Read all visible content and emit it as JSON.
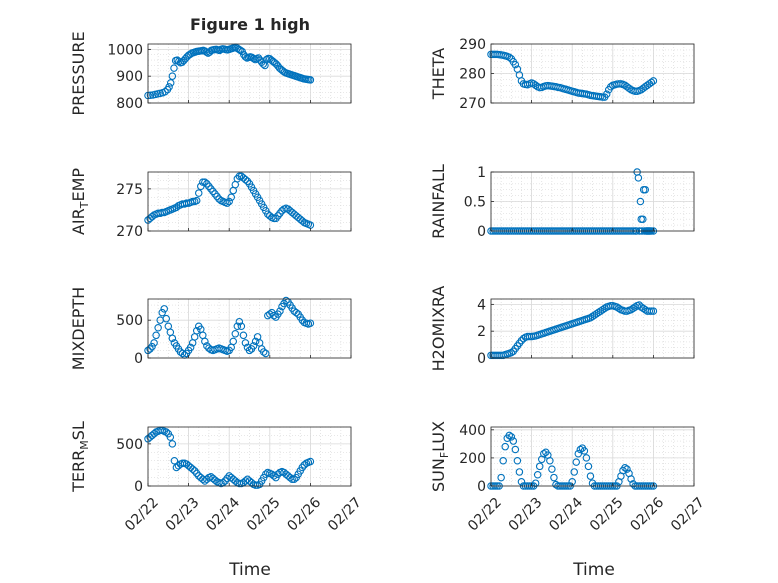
{
  "figure": {
    "title": "Figure 1 high",
    "xlabel": "Time",
    "x_ticks": [
      "02/22",
      "02/23",
      "02/24",
      "02/25",
      "02/26",
      "02/27"
    ],
    "marker_color": "#0072BD",
    "grid_color": "#d9d9d9",
    "axis_color": "#262626"
  },
  "chart_data": [
    {
      "type": "scatter",
      "ylabel": "PRESSURE",
      "ylim": [
        800,
        1020
      ],
      "yticks": [
        "800",
        "900",
        "1000"
      ],
      "x": [
        0.0,
        0.06,
        0.12,
        0.18,
        0.24,
        0.3,
        0.36,
        0.42,
        0.48,
        0.52,
        0.56,
        0.6,
        0.64,
        0.68,
        0.72,
        0.76,
        0.8,
        0.84,
        0.88,
        0.92,
        0.96,
        1.0,
        1.04,
        1.08,
        1.12,
        1.16,
        1.2,
        1.24,
        1.28,
        1.32,
        1.36,
        1.4,
        1.44,
        1.48,
        1.52,
        1.56,
        1.6,
        1.64,
        1.68,
        1.72,
        1.76,
        1.8,
        1.84,
        1.88,
        1.92,
        1.96,
        2.0,
        2.04,
        2.08,
        2.12,
        2.16,
        2.2,
        2.24,
        2.28,
        2.32,
        2.36,
        2.4,
        2.44,
        2.48,
        2.52,
        2.56,
        2.6,
        2.64,
        2.68,
        2.72,
        2.76,
        2.8,
        2.84,
        2.88,
        2.92,
        2.96,
        3.0,
        3.04,
        3.08,
        3.12,
        3.16,
        3.2,
        3.24,
        3.28,
        3.32,
        3.36,
        3.4,
        3.44,
        3.48,
        3.52,
        3.56,
        3.6,
        3.64,
        3.68,
        3.72,
        3.76,
        3.8,
        3.84,
        3.88,
        3.92,
        3.96,
        4.0
      ],
      "y": [
        828,
        829,
        830,
        832,
        834,
        836,
        838,
        842,
        850,
        860,
        875,
        900,
        930,
        958,
        960,
        955,
        950,
        952,
        958,
        965,
        972,
        978,
        982,
        986,
        988,
        990,
        992,
        993,
        994,
        995,
        996,
        994,
        990,
        986,
        990,
        996,
        998,
        999,
        1000,
        998,
        996,
        1000,
        1002,
        1001,
        999,
        998,
        1000,
        1002,
        1004,
        1006,
        1008,
        1004,
        1000,
        996,
        992,
        980,
        972,
        968,
        970,
        972,
        970,
        966,
        962,
        965,
        968,
        960,
        952,
        945,
        940,
        962,
        966,
        965,
        960,
        955,
        950,
        945,
        938,
        930,
        925,
        920,
        915,
        912,
        910,
        908,
        906,
        904,
        902,
        900,
        898,
        896,
        894,
        892,
        890,
        889,
        888,
        887,
        886
      ]
    },
    {
      "type": "scatter",
      "ylabel": "THETA",
      "ylim": [
        270,
        290
      ],
      "yticks": [
        "270",
        "280",
        "290"
      ],
      "x": [
        0.0,
        0.05,
        0.1,
        0.15,
        0.2,
        0.25,
        0.3,
        0.35,
        0.4,
        0.45,
        0.5,
        0.55,
        0.6,
        0.65,
        0.7,
        0.75,
        0.8,
        0.85,
        0.9,
        0.95,
        1.0,
        1.05,
        1.1,
        1.15,
        1.2,
        1.25,
        1.3,
        1.35,
        1.4,
        1.45,
        1.5,
        1.55,
        1.6,
        1.65,
        1.7,
        1.75,
        1.8,
        1.85,
        1.9,
        1.95,
        2.0,
        2.05,
        2.1,
        2.15,
        2.2,
        2.25,
        2.3,
        2.35,
        2.4,
        2.45,
        2.5,
        2.55,
        2.6,
        2.65,
        2.7,
        2.75,
        2.8,
        2.85,
        2.9,
        2.95,
        3.0,
        3.05,
        3.1,
        3.15,
        3.2,
        3.25,
        3.3,
        3.35,
        3.4,
        3.45,
        3.5,
        3.55,
        3.6,
        3.65,
        3.7,
        3.75,
        3.8,
        3.85,
        3.9,
        3.95,
        4.0
      ],
      "y": [
        286.5,
        286.5,
        286.5,
        286.5,
        286.4,
        286.3,
        286.2,
        286,
        285.8,
        285.5,
        285,
        284,
        283,
        281.5,
        279.5,
        277.5,
        276.5,
        276.3,
        276.2,
        276.5,
        276.8,
        276.5,
        276,
        275.5,
        275.2,
        275.3,
        275.6,
        275.8,
        275.9,
        275.8,
        275.7,
        275.6,
        275.5,
        275.3,
        275.2,
        275,
        274.8,
        274.6,
        274.4,
        274.2,
        274,
        273.8,
        273.6,
        273.4,
        273.3,
        273.2,
        273.1,
        273,
        272.8,
        272.6,
        272.5,
        272.4,
        272.3,
        272.2,
        272.1,
        272,
        272,
        273,
        274.5,
        275.5,
        276,
        276.2,
        276.4,
        276.5,
        276.5,
        276.3,
        276,
        275.5,
        275,
        274.5,
        274.2,
        274,
        274,
        274.2,
        274.5,
        275,
        275.5,
        276,
        276.5,
        277,
        277.5
      ]
    },
    {
      "type": "scatter",
      "ylabel": "AIR_TEMP",
      "ylim": [
        270,
        277
      ],
      "yticks": [
        "270",
        "275"
      ],
      "x": [
        0.0,
        0.05,
        0.1,
        0.15,
        0.2,
        0.25,
        0.3,
        0.35,
        0.4,
        0.45,
        0.5,
        0.55,
        0.6,
        0.65,
        0.7,
        0.75,
        0.8,
        0.85,
        0.9,
        0.95,
        1.0,
        1.05,
        1.1,
        1.15,
        1.2,
        1.25,
        1.3,
        1.35,
        1.4,
        1.45,
        1.5,
        1.55,
        1.6,
        1.65,
        1.7,
        1.75,
        1.8,
        1.85,
        1.9,
        1.95,
        2.0,
        2.05,
        2.1,
        2.15,
        2.2,
        2.25,
        2.3,
        2.35,
        2.4,
        2.45,
        2.5,
        2.55,
        2.6,
        2.65,
        2.7,
        2.75,
        2.8,
        2.85,
        2.9,
        2.95,
        3.0,
        3.05,
        3.1,
        3.15,
        3.2,
        3.25,
        3.3,
        3.35,
        3.4,
        3.45,
        3.5,
        3.55,
        3.6,
        3.65,
        3.7,
        3.75,
        3.8,
        3.85,
        3.9,
        3.95,
        4.0
      ],
      "y": [
        271.3,
        271.5,
        271.7,
        271.9,
        272,
        272.1,
        272.1,
        272.2,
        272.2,
        272.3,
        272.4,
        272.5,
        272.6,
        272.7,
        272.8,
        273,
        273.1,
        273.2,
        273.2,
        273.3,
        273.3,
        273.4,
        273.5,
        273.5,
        273.6,
        274.5,
        275.3,
        275.8,
        275.8,
        275.6,
        275.3,
        275,
        274.7,
        274.4,
        274.1,
        273.8,
        273.6,
        273.5,
        273.4,
        273.3,
        273.5,
        274,
        274.8,
        275.5,
        276.2,
        276.5,
        276.5,
        276.3,
        276.1,
        275.9,
        275.6,
        275.2,
        274.8,
        274.4,
        274,
        273.6,
        273.2,
        272.8,
        272.4,
        272,
        271.8,
        271.6,
        271.5,
        271.5,
        271.8,
        272.1,
        272.4,
        272.6,
        272.7,
        272.6,
        272.4,
        272.2,
        272,
        271.8,
        271.6,
        271.4,
        271.2,
        271,
        270.9,
        270.8,
        270.7
      ]
    },
    {
      "type": "scatter",
      "ylabel": "RAINFALL",
      "ylim": [
        0,
        1
      ],
      "yticks": [
        "0",
        "0.5",
        "1"
      ],
      "x": [
        0.0,
        0.05,
        0.1,
        0.15,
        0.2,
        0.25,
        0.3,
        0.35,
        0.4,
        0.45,
        0.5,
        0.55,
        0.6,
        0.65,
        0.7,
        0.75,
        0.8,
        0.85,
        0.9,
        0.95,
        1.0,
        1.05,
        1.1,
        1.15,
        1.2,
        1.25,
        1.3,
        1.35,
        1.4,
        1.45,
        1.5,
        1.55,
        1.6,
        1.65,
        1.7,
        1.75,
        1.8,
        1.85,
        1.9,
        1.95,
        2.0,
        2.05,
        2.1,
        2.15,
        2.2,
        2.25,
        2.3,
        2.35,
        2.4,
        2.45,
        2.5,
        2.55,
        2.6,
        2.65,
        2.7,
        2.75,
        2.8,
        2.85,
        2.9,
        2.95,
        3.0,
        3.05,
        3.1,
        3.15,
        3.2,
        3.25,
        3.3,
        3.35,
        3.4,
        3.45,
        3.5,
        3.55,
        3.58,
        3.6,
        3.63,
        3.66,
        3.68,
        3.7,
        3.72,
        3.74,
        3.76,
        3.78,
        3.8,
        3.82,
        3.84,
        3.86,
        3.88,
        3.9,
        3.92,
        3.95,
        4.0
      ],
      "y": [
        0,
        0,
        0,
        0,
        0,
        0,
        0,
        0,
        0,
        0,
        0,
        0,
        0,
        0,
        0,
        0,
        0,
        0,
        0,
        0,
        0,
        0,
        0,
        0,
        0,
        0,
        0,
        0,
        0,
        0,
        0,
        0,
        0,
        0,
        0,
        0,
        0,
        0,
        0,
        0,
        0,
        0,
        0,
        0,
        0,
        0,
        0,
        0,
        0,
        0,
        0,
        0,
        0,
        0,
        0,
        0,
        0,
        0,
        0,
        0,
        0,
        0,
        0,
        0,
        0,
        0,
        0,
        0,
        0,
        0,
        0,
        0,
        0,
        1.0,
        0.9,
        0,
        0.5,
        0.2,
        0,
        0.2,
        0.7,
        0,
        0.7,
        0,
        0,
        0,
        0,
        0,
        0,
        0,
        0
      ]
    },
    {
      "type": "scatter",
      "ylabel": "MIXDEPTH",
      "ylim": [
        0,
        780
      ],
      "yticks": [
        "0",
        "500"
      ],
      "x": [
        0.0,
        0.05,
        0.1,
        0.15,
        0.2,
        0.25,
        0.3,
        0.35,
        0.4,
        0.45,
        0.5,
        0.55,
        0.6,
        0.65,
        0.7,
        0.75,
        0.8,
        0.85,
        0.9,
        0.95,
        1.0,
        1.05,
        1.1,
        1.15,
        1.2,
        1.25,
        1.3,
        1.35,
        1.4,
        1.45,
        1.5,
        1.55,
        1.6,
        1.65,
        1.7,
        1.75,
        1.8,
        1.85,
        1.9,
        1.95,
        2.0,
        2.05,
        2.1,
        2.15,
        2.2,
        2.25,
        2.3,
        2.35,
        2.4,
        2.45,
        2.5,
        2.55,
        2.6,
        2.65,
        2.7,
        2.75,
        2.8,
        2.85,
        2.9,
        2.95,
        3.0,
        3.05,
        3.1,
        3.15,
        3.2,
        3.25,
        3.3,
        3.35,
        3.4,
        3.45,
        3.5,
        3.55,
        3.6,
        3.65,
        3.7,
        3.75,
        3.8,
        3.85,
        3.9,
        3.95,
        4.0
      ],
      "y": [
        100,
        120,
        150,
        200,
        300,
        400,
        500,
        600,
        650,
        520,
        420,
        340,
        260,
        200,
        160,
        120,
        80,
        60,
        40,
        60,
        100,
        140,
        200,
        280,
        360,
        420,
        380,
        300,
        220,
        160,
        130,
        110,
        100,
        110,
        120,
        130,
        120,
        110,
        100,
        90,
        100,
        140,
        220,
        320,
        420,
        480,
        420,
        300,
        200,
        140,
        100,
        120,
        160,
        220,
        280,
        200,
        120,
        80,
        60,
        560,
        580,
        600,
        560,
        540,
        580,
        620,
        680,
        720,
        760,
        740,
        700,
        660,
        620,
        600,
        580,
        540,
        500,
        470,
        460,
        450,
        460
      ]
    },
    {
      "type": "scatter",
      "ylabel": "H2OMIXRA",
      "ylim": [
        0,
        4.4
      ],
      "yticks": [
        "0",
        "2",
        "4"
      ],
      "x": [
        0.0,
        0.05,
        0.1,
        0.15,
        0.2,
        0.25,
        0.3,
        0.35,
        0.4,
        0.45,
        0.5,
        0.55,
        0.6,
        0.65,
        0.7,
        0.75,
        0.8,
        0.85,
        0.9,
        0.95,
        1.0,
        1.05,
        1.1,
        1.15,
        1.2,
        1.25,
        1.3,
        1.35,
        1.4,
        1.45,
        1.5,
        1.55,
        1.6,
        1.65,
        1.7,
        1.75,
        1.8,
        1.85,
        1.9,
        1.95,
        2.0,
        2.05,
        2.1,
        2.15,
        2.2,
        2.25,
        2.3,
        2.35,
        2.4,
        2.45,
        2.5,
        2.55,
        2.6,
        2.65,
        2.7,
        2.75,
        2.8,
        2.85,
        2.9,
        2.95,
        3.0,
        3.05,
        3.1,
        3.15,
        3.2,
        3.25,
        3.3,
        3.35,
        3.4,
        3.45,
        3.5,
        3.55,
        3.6,
        3.65,
        3.7,
        3.75,
        3.8,
        3.85,
        3.9,
        3.95,
        4.0
      ],
      "y": [
        0.2,
        0.2,
        0.2,
        0.2,
        0.2,
        0.2,
        0.2,
        0.25,
        0.3,
        0.35,
        0.4,
        0.5,
        0.7,
        0.9,
        1.1,
        1.3,
        1.45,
        1.55,
        1.6,
        1.6,
        1.6,
        1.62,
        1.65,
        1.7,
        1.75,
        1.8,
        1.85,
        1.9,
        1.95,
        2.0,
        2.05,
        2.1,
        2.15,
        2.2,
        2.25,
        2.3,
        2.35,
        2.4,
        2.45,
        2.5,
        2.55,
        2.6,
        2.65,
        2.7,
        2.75,
        2.8,
        2.85,
        2.9,
        2.95,
        3.0,
        3.1,
        3.2,
        3.3,
        3.4,
        3.5,
        3.6,
        3.7,
        3.8,
        3.85,
        3.9,
        3.9,
        3.85,
        3.8,
        3.7,
        3.6,
        3.55,
        3.5,
        3.5,
        3.55,
        3.6,
        3.7,
        3.8,
        3.9,
        3.95,
        3.8,
        3.7,
        3.6,
        3.5,
        3.5,
        3.5,
        3.5
      ]
    },
    {
      "type": "scatter",
      "ylabel": "TERR_MSL",
      "ylim": [
        0,
        700
      ],
      "yticks": [
        "0",
        "500"
      ],
      "x": [
        0.0,
        0.05,
        0.1,
        0.15,
        0.2,
        0.25,
        0.3,
        0.35,
        0.4,
        0.45,
        0.5,
        0.55,
        0.6,
        0.65,
        0.7,
        0.75,
        0.8,
        0.85,
        0.9,
        0.95,
        1.0,
        1.05,
        1.1,
        1.15,
        1.2,
        1.25,
        1.3,
        1.35,
        1.4,
        1.45,
        1.5,
        1.55,
        1.6,
        1.65,
        1.7,
        1.75,
        1.8,
        1.85,
        1.9,
        1.95,
        2.0,
        2.05,
        2.1,
        2.15,
        2.2,
        2.25,
        2.3,
        2.35,
        2.4,
        2.45,
        2.5,
        2.55,
        2.6,
        2.65,
        2.7,
        2.75,
        2.8,
        2.85,
        2.9,
        2.95,
        3.0,
        3.05,
        3.1,
        3.15,
        3.2,
        3.25,
        3.3,
        3.35,
        3.4,
        3.45,
        3.5,
        3.55,
        3.6,
        3.65,
        3.7,
        3.75,
        3.8,
        3.85,
        3.9,
        3.95,
        4.0
      ],
      "y": [
        560,
        580,
        600,
        620,
        640,
        650,
        660,
        660,
        650,
        640,
        620,
        580,
        500,
        300,
        220,
        240,
        260,
        270,
        270,
        260,
        240,
        220,
        200,
        180,
        150,
        120,
        100,
        80,
        60,
        80,
        100,
        110,
        90,
        70,
        50,
        40,
        30,
        40,
        60,
        90,
        120,
        100,
        80,
        60,
        40,
        30,
        30,
        40,
        60,
        80,
        60,
        40,
        20,
        10,
        10,
        20,
        60,
        100,
        140,
        160,
        150,
        140,
        120,
        100,
        140,
        160,
        170,
        160,
        140,
        120,
        100,
        80,
        80,
        100,
        140,
        180,
        220,
        250,
        270,
        280,
        290
      ]
    },
    {
      "type": "scatter",
      "ylabel": "SUN_FLUX",
      "ylim": [
        0,
        420
      ],
      "yticks": [
        "0",
        "200",
        "400"
      ],
      "x": [
        0.0,
        0.05,
        0.1,
        0.15,
        0.2,
        0.25,
        0.3,
        0.35,
        0.4,
        0.45,
        0.5,
        0.55,
        0.6,
        0.65,
        0.7,
        0.75,
        0.8,
        0.85,
        0.9,
        0.95,
        1.0,
        1.05,
        1.1,
        1.15,
        1.2,
        1.25,
        1.3,
        1.35,
        1.4,
        1.45,
        1.5,
        1.55,
        1.6,
        1.65,
        1.7,
        1.75,
        1.8,
        1.85,
        1.9,
        1.95,
        2.0,
        2.05,
        2.1,
        2.15,
        2.2,
        2.25,
        2.3,
        2.35,
        2.4,
        2.45,
        2.5,
        2.55,
        2.6,
        2.65,
        2.7,
        2.75,
        2.8,
        2.85,
        2.9,
        2.95,
        3.0,
        3.05,
        3.1,
        3.15,
        3.2,
        3.25,
        3.3,
        3.35,
        3.4,
        3.45,
        3.5,
        3.55,
        3.6,
        3.65,
        3.7,
        3.75,
        3.8,
        3.85,
        3.9,
        3.95,
        4.0
      ],
      "y": [
        0,
        0,
        0,
        0,
        0,
        60,
        180,
        280,
        340,
        360,
        350,
        320,
        260,
        180,
        100,
        30,
        0,
        0,
        0,
        0,
        0,
        0,
        20,
        80,
        140,
        190,
        230,
        240,
        220,
        180,
        120,
        60,
        10,
        0,
        0,
        0,
        0,
        0,
        0,
        0,
        30,
        100,
        170,
        230,
        260,
        270,
        250,
        200,
        140,
        70,
        20,
        0,
        0,
        0,
        0,
        0,
        0,
        0,
        0,
        0,
        0,
        0,
        0,
        30,
        70,
        110,
        130,
        120,
        90,
        50,
        15,
        0,
        0,
        0,
        0,
        0,
        0,
        0,
        0,
        0,
        0
      ]
    }
  ]
}
